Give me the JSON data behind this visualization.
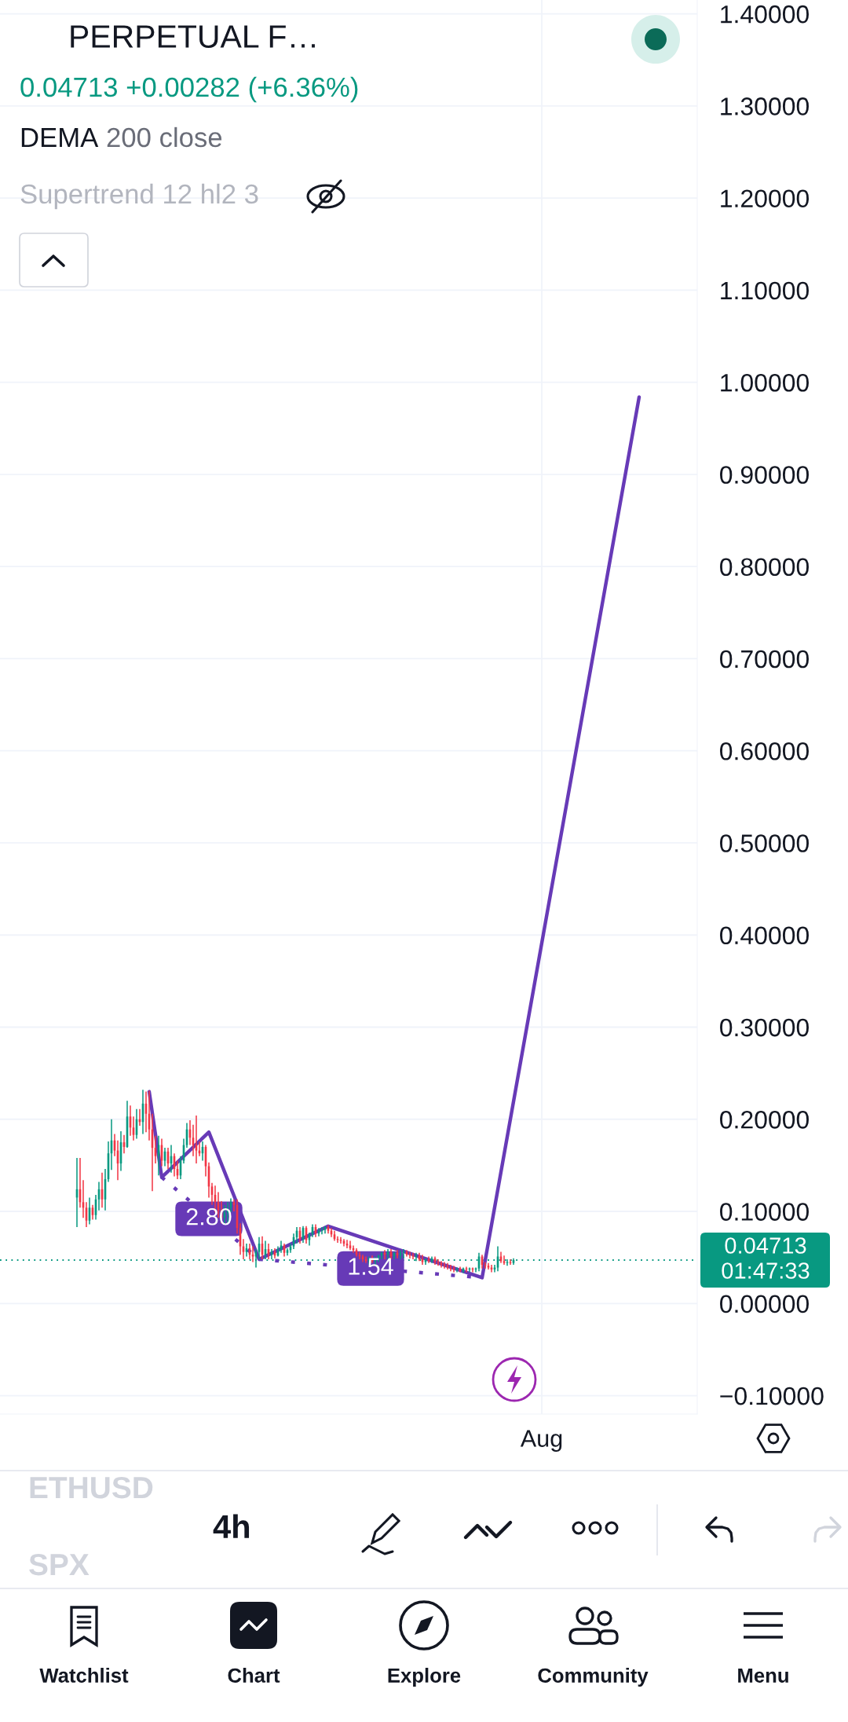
{
  "chart_data": {
    "type": "candlestick",
    "title": "PERPETUAL F…",
    "subtitle": "0.04713 +0.00282 (+6.36%)",
    "categories": [
      null,
      null,
      null,
      null,
      null,
      null,
      null,
      null,
      null,
      null,
      null,
      null,
      null,
      null,
      null,
      null,
      null,
      null,
      null,
      null,
      null,
      null,
      null,
      null,
      null,
      null,
      null,
      null,
      null,
      null,
      null,
      null,
      null,
      null,
      null,
      null,
      null,
      null,
      null,
      null,
      null,
      null,
      null,
      null,
      null,
      null,
      null,
      null,
      null,
      null,
      null,
      null,
      null,
      null,
      null,
      null,
      null,
      null,
      null,
      null,
      null,
      null,
      null,
      null,
      null,
      null,
      null,
      null,
      null,
      null,
      null,
      null,
      null,
      null,
      null,
      null,
      null,
      null,
      null,
      null,
      null,
      null,
      null,
      null,
      null,
      null,
      null,
      null,
      null,
      null,
      null,
      null,
      null,
      null,
      null,
      null,
      null,
      null,
      null,
      null,
      null,
      null,
      null,
      null,
      null,
      null,
      null,
      null,
      null,
      null,
      null,
      null,
      null,
      null,
      null,
      null,
      null,
      null,
      null,
      null,
      null,
      null,
      null,
      null,
      null,
      null,
      null,
      null,
      null,
      null,
      null,
      null,
      null,
      null,
      null,
      null,
      null,
      null,
      null,
      null,
      null,
      null,
      null,
      null,
      null,
      null,
      null,
      null,
      null,
      null,
      null,
      null,
      null,
      null,
      null,
      null,
      null,
      null,
      null,
      null,
      null,
      null,
      null,
      null,
      null,
      null,
      null,
      null,
      null,
      null,
      null,
      null,
      "Aug",
      null,
      null,
      null,
      null,
      null,
      null,
      null,
      null,
      null,
      null,
      null,
      null,
      null,
      null,
      null,
      null,
      null,
      null,
      null,
      null,
      null,
      null,
      null,
      null,
      null,
      null,
      null,
      null,
      null,
      null,
      null,
      null,
      null,
      null,
      null,
      null,
      null,
      null,
      null,
      null,
      null,
      null,
      null,
      null,
      null,
      null,
      null,
      null,
      null
    ],
    "ohlc": [
      null,
      null,
      null,
      null,
      null,
      null,
      null,
      null,
      null,
      null,
      null,
      null,
      null,
      null,
      null,
      null,
      null,
      null,
      null,
      null,
      null,
      null,
      null,
      null,
      [
        0.115,
        0.158,
        0.083,
        0.124
      ],
      [
        0.124,
        0.158,
        0.104,
        0.11
      ],
      [
        0.11,
        0.134,
        0.093,
        0.104
      ],
      [
        0.104,
        0.11,
        0.083,
        0.09
      ],
      [
        0.09,
        0.115,
        0.086,
        0.104
      ],
      [
        0.104,
        0.107,
        0.091,
        0.096
      ],
      [
        0.096,
        0.118,
        0.091,
        0.113
      ],
      [
        0.113,
        0.132,
        0.101,
        0.124
      ],
      [
        0.124,
        0.142,
        0.104,
        0.113
      ],
      [
        0.113,
        0.146,
        0.101,
        0.135
      ],
      [
        0.135,
        0.176,
        0.132,
        0.163
      ],
      [
        0.163,
        0.2,
        0.145,
        0.177
      ],
      [
        0.177,
        0.184,
        0.16,
        0.166
      ],
      [
        0.166,
        0.177,
        0.134,
        0.152
      ],
      [
        0.152,
        0.187,
        0.144,
        0.175
      ],
      [
        0.175,
        0.183,
        0.163,
        0.17
      ],
      [
        0.17,
        0.22,
        0.169,
        0.203
      ],
      [
        0.203,
        0.215,
        0.182,
        0.191
      ],
      [
        0.191,
        0.203,
        0.177,
        0.183
      ],
      [
        0.183,
        0.211,
        0.179,
        0.2
      ],
      [
        0.2,
        0.211,
        0.193,
        0.197
      ],
      [
        0.197,
        0.232,
        0.184,
        0.217
      ],
      [
        0.217,
        0.23,
        0.186,
        0.206
      ],
      [
        0.206,
        0.231,
        0.177,
        0.189
      ],
      [
        0.189,
        0.206,
        0.122,
        0.169
      ],
      [
        0.169,
        0.182,
        0.152,
        0.16
      ],
      [
        0.16,
        0.182,
        0.139,
        0.172
      ],
      [
        0.172,
        0.179,
        0.149,
        0.155
      ],
      [
        0.155,
        0.169,
        0.149,
        0.165
      ],
      [
        0.165,
        0.169,
        0.146,
        0.152
      ],
      [
        0.152,
        0.172,
        0.142,
        0.16
      ],
      [
        0.16,
        0.163,
        0.138,
        0.146
      ],
      [
        0.146,
        0.155,
        0.135,
        0.139
      ],
      [
        0.139,
        0.16,
        0.135,
        0.155
      ],
      [
        0.155,
        0.179,
        0.152,
        0.172
      ],
      [
        0.172,
        0.196,
        0.169,
        0.189
      ],
      [
        0.189,
        0.199,
        0.172,
        0.18
      ],
      [
        0.18,
        0.194,
        0.16,
        0.172
      ],
      [
        0.172,
        0.204,
        0.152,
        0.166
      ],
      [
        0.166,
        0.176,
        0.16,
        0.163
      ],
      [
        0.163,
        0.176,
        0.155,
        0.17
      ],
      [
        0.17,
        0.172,
        0.138,
        0.149
      ],
      [
        0.149,
        0.153,
        0.115,
        0.127
      ],
      [
        0.127,
        0.131,
        0.107,
        0.118
      ],
      [
        0.118,
        0.128,
        0.099,
        0.11
      ],
      [
        0.11,
        0.121,
        0.093,
        0.101
      ],
      [
        0.101,
        0.111,
        0.087,
        0.093
      ],
      [
        0.093,
        0.107,
        0.087,
        0.099
      ],
      [
        0.099,
        0.11,
        0.087,
        0.104
      ],
      [
        0.104,
        0.114,
        0.099,
        0.11
      ],
      [
        0.11,
        0.113,
        0.1,
        0.107
      ],
      [
        0.107,
        0.113,
        0.076,
        0.082
      ],
      [
        0.082,
        0.087,
        0.053,
        0.062
      ],
      [
        0.062,
        0.07,
        0.048,
        0.056
      ],
      [
        0.056,
        0.065,
        0.051,
        0.06
      ],
      [
        0.06,
        0.065,
        0.048,
        0.053
      ],
      [
        0.053,
        0.062,
        0.045,
        0.051
      ],
      [
        0.051,
        0.059,
        0.039,
        0.056
      ],
      [
        0.056,
        0.072,
        0.048,
        0.065
      ],
      [
        0.065,
        0.073,
        0.048,
        0.053
      ],
      [
        0.053,
        0.068,
        0.048,
        0.059
      ],
      [
        0.059,
        0.065,
        0.048,
        0.053
      ],
      [
        0.053,
        0.059,
        0.048,
        0.056
      ],
      [
        0.056,
        0.06,
        0.049,
        0.052
      ],
      [
        0.052,
        0.062,
        0.051,
        0.059
      ],
      [
        0.059,
        0.068,
        0.055,
        0.063
      ],
      [
        0.063,
        0.065,
        0.051,
        0.055
      ],
      [
        0.055,
        0.06,
        0.052,
        0.058
      ],
      [
        0.058,
        0.065,
        0.055,
        0.062
      ],
      [
        0.062,
        0.076,
        0.059,
        0.072
      ],
      [
        0.072,
        0.083,
        0.065,
        0.079
      ],
      [
        0.079,
        0.083,
        0.065,
        0.07
      ],
      [
        0.07,
        0.084,
        0.066,
        0.082
      ],
      [
        0.082,
        0.084,
        0.065,
        0.069
      ],
      [
        0.069,
        0.077,
        0.063,
        0.075
      ],
      [
        0.075,
        0.086,
        0.072,
        0.083
      ],
      [
        0.083,
        0.086,
        0.072,
        0.076
      ],
      [
        0.076,
        0.082,
        0.073,
        0.079
      ],
      [
        0.079,
        0.083,
        0.075,
        0.08
      ],
      [
        0.08,
        0.084,
        0.076,
        0.083
      ],
      [
        0.083,
        0.085,
        0.076,
        0.079
      ],
      [
        0.079,
        0.082,
        0.072,
        0.075
      ],
      [
        0.075,
        0.079,
        0.068,
        0.07
      ],
      [
        0.07,
        0.073,
        0.066,
        0.069
      ],
      [
        0.069,
        0.072,
        0.065,
        0.068
      ],
      [
        0.068,
        0.07,
        0.062,
        0.065
      ],
      [
        0.065,
        0.069,
        0.06,
        0.063
      ],
      [
        0.063,
        0.068,
        0.058,
        0.06
      ],
      [
        0.06,
        0.063,
        0.055,
        0.058
      ],
      [
        0.058,
        0.06,
        0.051,
        0.053
      ],
      [
        0.053,
        0.056,
        0.048,
        0.051
      ],
      [
        0.051,
        0.053,
        0.045,
        0.048
      ],
      [
        0.048,
        0.051,
        0.044,
        0.046
      ],
      [
        0.046,
        0.051,
        0.042,
        0.049
      ],
      [
        0.049,
        0.052,
        0.044,
        0.046
      ],
      [
        0.046,
        0.051,
        0.042,
        0.049
      ],
      [
        0.049,
        0.053,
        0.045,
        0.052
      ],
      [
        0.052,
        0.056,
        0.048,
        0.055
      ],
      [
        0.055,
        0.058,
        0.048,
        0.053
      ],
      [
        0.053,
        0.059,
        0.048,
        0.056
      ],
      [
        0.056,
        0.059,
        0.048,
        0.051
      ],
      [
        0.051,
        0.056,
        0.048,
        0.055
      ],
      [
        0.055,
        0.058,
        0.049,
        0.052
      ],
      [
        0.052,
        0.058,
        0.048,
        0.055
      ],
      [
        0.055,
        0.059,
        0.049,
        0.056
      ],
      [
        0.056,
        0.058,
        0.051,
        0.053
      ],
      [
        0.053,
        0.056,
        0.049,
        0.052
      ],
      [
        0.052,
        0.055,
        0.048,
        0.051
      ],
      [
        0.051,
        0.055,
        0.046,
        0.052
      ],
      [
        0.052,
        0.055,
        0.046,
        0.048
      ],
      [
        0.048,
        0.053,
        0.042,
        0.045
      ],
      [
        0.045,
        0.049,
        0.042,
        0.048
      ],
      [
        0.048,
        0.051,
        0.044,
        0.046
      ],
      [
        0.046,
        0.051,
        0.044,
        0.049
      ],
      [
        0.049,
        0.051,
        0.042,
        0.045
      ],
      [
        0.045,
        0.048,
        0.041,
        0.044
      ],
      [
        0.044,
        0.046,
        0.039,
        0.042
      ],
      [
        0.042,
        0.045,
        0.038,
        0.041
      ],
      [
        0.041,
        0.044,
        0.037,
        0.039
      ],
      [
        0.039,
        0.042,
        0.035,
        0.038
      ],
      [
        0.038,
        0.041,
        0.034,
        0.037
      ],
      [
        0.037,
        0.039,
        0.034,
        0.038
      ],
      [
        0.038,
        0.04,
        0.034,
        0.035
      ],
      [
        0.035,
        0.039,
        0.033,
        0.038
      ],
      [
        0.038,
        0.04,
        0.034,
        0.037
      ],
      [
        0.037,
        0.039,
        0.034,
        0.038
      ],
      [
        0.038,
        0.039,
        0.034,
        0.037
      ],
      [
        0.037,
        0.039,
        0.034,
        0.038
      ],
      [
        0.038,
        0.055,
        0.035,
        0.051
      ],
      [
        0.051,
        0.053,
        0.038,
        0.042
      ],
      [
        0.042,
        0.045,
        0.038,
        0.041
      ],
      [
        0.041,
        0.044,
        0.037,
        0.039
      ],
      [
        0.039,
        0.042,
        0.034,
        0.037
      ],
      [
        0.037,
        0.042,
        0.034,
        0.039
      ],
      [
        0.039,
        0.062,
        0.035,
        0.051
      ],
      [
        0.051,
        0.056,
        0.044,
        0.046
      ],
      [
        0.046,
        0.052,
        0.042,
        0.044
      ],
      [
        0.044,
        0.048,
        0.041,
        0.045
      ],
      [
        0.045,
        0.048,
        0.042,
        0.044
      ],
      [
        0.044,
        0.049,
        0.042,
        0.04713
      ],
      null,
      null,
      null,
      null,
      null,
      null,
      null,
      null,
      null,
      null,
      null,
      null,
      null,
      null,
      null,
      null,
      null,
      null,
      null,
      null,
      null,
      null,
      null,
      null,
      null,
      null,
      null,
      null,
      null,
      null,
      null,
      null,
      null,
      null,
      null,
      null,
      null,
      null,
      null,
      null,
      null,
      null,
      null,
      null,
      null,
      null,
      null,
      null,
      null,
      null,
      null,
      null,
      null,
      null,
      null,
      null,
      null,
      null
    ],
    "series": [
      {
        "type": "line",
        "color": "#673ab7",
        "values": [
          null,
          null,
          null,
          null,
          null,
          null,
          null,
          null,
          null,
          null,
          null,
          null,
          null,
          null,
          null,
          null,
          null,
          null,
          null,
          null,
          null,
          null,
          null,
          null,
          null,
          null,
          null,
          null,
          null,
          null,
          null,
          null,
          null,
          null,
          null,
          null,
          null,
          null,
          null,
          null,
          null,
          null,
          null,
          null,
          null,
          null,
          null,
          0.23,
          null,
          null,
          null,
          0.137,
          null,
          null,
          null,
          null,
          null,
          null,
          null,
          null,
          null,
          null,
          null,
          null,
          null,
          null,
          0.186,
          null,
          null,
          null,
          null,
          null,
          null,
          null,
          null,
          null,
          null,
          null,
          null,
          null,
          null,
          null,
          0.048,
          null,
          null,
          null,
          null,
          null,
          null,
          null,
          null,
          null,
          null,
          null,
          null,
          null,
          null,
          null,
          null,
          null,
          null,
          null,
          null,
          null,
          0.084,
          null,
          null,
          null,
          null,
          null,
          null,
          null,
          null,
          null,
          null,
          null,
          null,
          null,
          null,
          null,
          null,
          null,
          null,
          null,
          null,
          null,
          null,
          null,
          null,
          null,
          null,
          null,
          null,
          null,
          null,
          null,
          null,
          null,
          null,
          null,
          null,
          null,
          null,
          null,
          null,
          null,
          null,
          null,
          null,
          null,
          null,
          null,
          null,
          0.028,
          null,
          null,
          null,
          null,
          null,
          null,
          null,
          null,
          null,
          null,
          null,
          null,
          null,
          null,
          null,
          null,
          null,
          null,
          null,
          null,
          null,
          null,
          null,
          null,
          null,
          null,
          null,
          null,
          null,
          null,
          null,
          null,
          null,
          null,
          null,
          null,
          null,
          null,
          null,
          null,
          null,
          null,
          null,
          null,
          null,
          null,
          null,
          null,
          null,
          0.984,
          null,
          null,
          null,
          null,
          null,
          null,
          null,
          null,
          null,
          null,
          null,
          null,
          null,
          null,
          null,
          null,
          null,
          null
        ]
      },
      {
        "type": "line",
        "color": "#673ab7",
        "line_style": "dotted",
        "values": [
          null,
          null,
          null,
          null,
          null,
          null,
          null,
          null,
          null,
          null,
          null,
          null,
          null,
          null,
          null,
          null,
          null,
          null,
          null,
          null,
          null,
          null,
          null,
          null,
          null,
          null,
          null,
          null,
          null,
          null,
          null,
          null,
          null,
          null,
          null,
          null,
          null,
          null,
          null,
          null,
          null,
          null,
          null,
          null,
          null,
          null,
          null,
          null,
          null,
          null,
          null,
          0.137,
          null,
          null,
          null,
          null,
          null,
          null,
          null,
          null,
          null,
          null,
          null,
          null,
          null,
          null,
          null,
          null,
          null,
          null,
          null,
          null,
          null,
          null,
          null,
          null,
          null,
          null,
          null,
          null,
          null,
          null,
          0.048,
          null,
          null,
          null,
          null,
          null,
          null,
          null,
          null,
          null,
          null,
          null,
          null,
          null,
          null,
          null,
          null,
          null,
          null,
          null,
          null,
          null,
          null,
          null,
          null,
          null,
          null,
          null,
          null,
          null,
          null,
          null,
          null,
          null,
          null,
          null,
          null,
          null,
          null,
          null,
          null,
          null,
          null,
          null,
          null,
          null,
          null,
          null,
          null,
          null,
          null,
          null,
          null,
          null,
          null,
          null,
          null,
          null,
          null,
          null,
          null,
          null,
          null,
          null,
          null,
          null,
          null,
          null,
          null,
          null,
          null,
          null,
          null,
          null,
          null,
          null,
          null,
          null,
          null,
          null,
          null,
          null,
          null,
          null,
          null,
          null,
          null,
          null,
          null,
          null,
          null,
          null,
          null,
          null,
          null,
          null,
          null,
          null,
          null,
          null,
          null,
          null,
          null,
          null,
          null,
          null,
          null,
          null,
          null,
          null,
          null,
          null,
          null,
          null,
          null,
          null,
          null,
          null,
          null,
          null,
          null,
          null,
          null,
          null,
          null,
          null,
          null,
          null,
          null,
          null,
          null,
          null,
          null,
          null,
          null,
          null,
          null,
          null,
          null,
          null
        ]
      },
      {
        "type": "line",
        "color": "#673ab7",
        "line_style": "dotted",
        "values": [
          null,
          null,
          null,
          null,
          null,
          null,
          null,
          null,
          null,
          null,
          null,
          null,
          null,
          null,
          null,
          null,
          null,
          null,
          null,
          null,
          null,
          null,
          null,
          null,
          null,
          null,
          null,
          null,
          null,
          null,
          null,
          null,
          null,
          null,
          null,
          null,
          null,
          null,
          null,
          null,
          null,
          null,
          null,
          null,
          null,
          null,
          null,
          null,
          null,
          null,
          null,
          null,
          null,
          null,
          null,
          null,
          null,
          null,
          null,
          null,
          null,
          null,
          null,
          null,
          null,
          null,
          null,
          null,
          null,
          null,
          null,
          null,
          null,
          null,
          null,
          null,
          null,
          null,
          null,
          null,
          null,
          null,
          0.048,
          null,
          null,
          null,
          null,
          null,
          null,
          null,
          null,
          null,
          null,
          null,
          null,
          null,
          null,
          null,
          null,
          null,
          null,
          null,
          null,
          null,
          null,
          null,
          null,
          null,
          null,
          null,
          null,
          null,
          null,
          null,
          null,
          null,
          null,
          null,
          null,
          null,
          null,
          null,
          null,
          null,
          null,
          null,
          null,
          null,
          null,
          null,
          null,
          null,
          null,
          null,
          null,
          null,
          null,
          null,
          null,
          null,
          null,
          null,
          null,
          null,
          null,
          null,
          null,
          null,
          null,
          null,
          null,
          null,
          null,
          0.028,
          null,
          null,
          null,
          null,
          null,
          null,
          null,
          null,
          null,
          null,
          null,
          null,
          null,
          null,
          null,
          null,
          null,
          null,
          null,
          null,
          null,
          null,
          null,
          null,
          null,
          null,
          null,
          null,
          null,
          null,
          null,
          null,
          null,
          null,
          null,
          null,
          null,
          null,
          null,
          null,
          null,
          null,
          null,
          null,
          null,
          null,
          null,
          null,
          null,
          null,
          null,
          null,
          null,
          null,
          null,
          null,
          null,
          null,
          null,
          null,
          null,
          null,
          null,
          null,
          null,
          null,
          null,
          null
        ]
      }
    ],
    "ylim": [
      -0.12,
      1.415
    ],
    "yticks": [
      {
        "value": -0.1,
        "label": "−0.10000"
      },
      {
        "value": 0,
        "label": "0.00000"
      },
      {
        "value": 0.1,
        "label": "0.10000"
      },
      {
        "value": 0.2,
        "label": "0.20000"
      },
      {
        "value": 0.3,
        "label": "0.30000"
      },
      {
        "value": 0.4,
        "label": "0.40000"
      },
      {
        "value": 0.5,
        "label": "0.50000"
      },
      {
        "value": 0.6,
        "label": "0.60000"
      },
      {
        "value": 0.7,
        "label": "0.70000"
      },
      {
        "value": 0.8,
        "label": "0.80000"
      },
      {
        "value": 0.9,
        "label": "0.90000"
      },
      {
        "value": 1.0,
        "label": "1.00000"
      },
      {
        "value": 1.1,
        "label": "1.10000"
      },
      {
        "value": 1.2,
        "label": "1.20000"
      },
      {
        "value": 1.3,
        "label": "1.30000"
      },
      {
        "value": 1.4,
        "label": "1.40000"
      }
    ],
    "grid": true,
    "ref_lines": [
      {
        "axis": "y",
        "value": 0.04713,
        "label": "0.04713",
        "color": "#089981",
        "line_style": "dotted"
      }
    ],
    "annotations": [
      {
        "text": "2.80",
        "y": 0.092
      },
      {
        "text": "1.54",
        "y": 0.038
      },
      "01:47:33",
      "DEMA",
      "200 close",
      "Supertrend 12 hl2 3",
      "ETHUSD",
      "4h",
      "SPX",
      "Watchlist",
      "Chart",
      "Explore",
      "Community",
      "Menu"
    ]
  }
}
